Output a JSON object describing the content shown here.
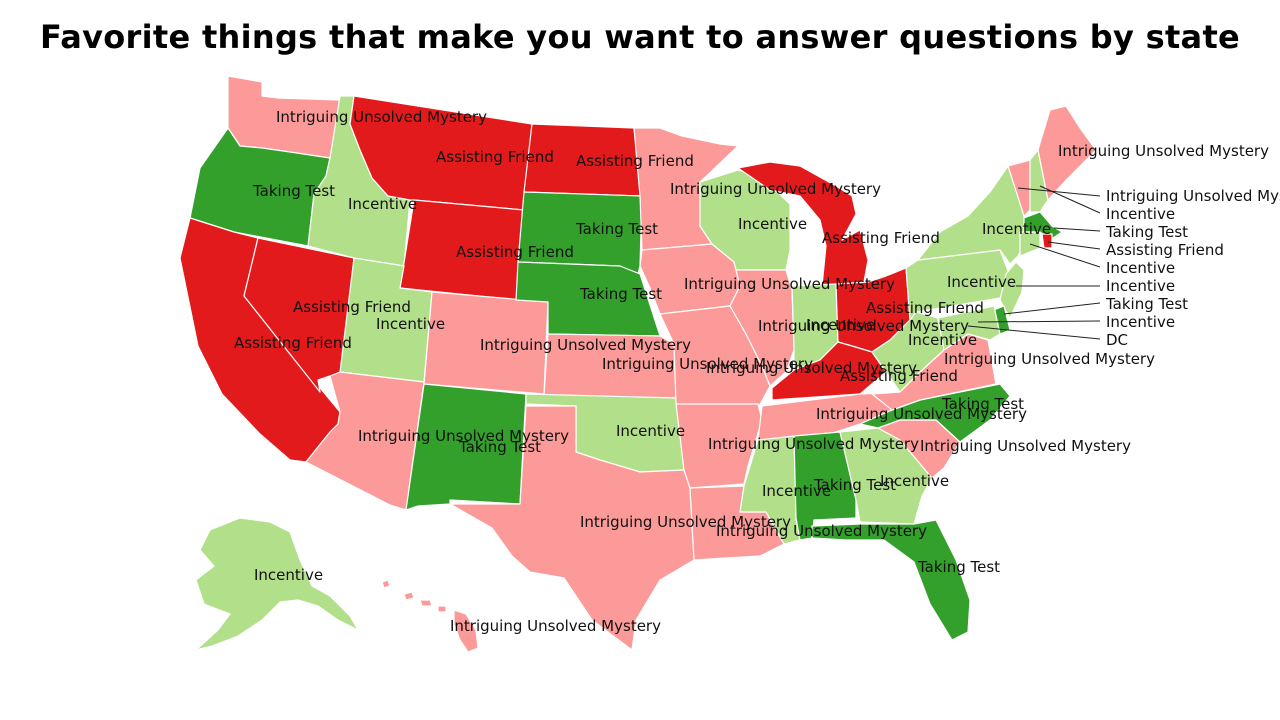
{
  "title": "Favorite things that make you want to answer questions by state",
  "legend_colors": {
    "Assisting Friend": "#e31a1c",
    "Intriguing Unsolved Mystery": "#fb9a99",
    "Taking Test": "#33a02c",
    "Incentive": "#b2df8a"
  },
  "states": {
    "WA": {
      "answer": "Intriguing Unsolved Mystery"
    },
    "OR": {
      "answer": "Taking Test"
    },
    "CA": {
      "answer": "Assisting Friend"
    },
    "ID": {
      "answer": "Incentive"
    },
    "NV": {
      "answer": "Assisting Friend"
    },
    "MT": {
      "answer": "Assisting Friend"
    },
    "WY": {
      "answer": "Assisting Friend"
    },
    "UT": {
      "answer": "Incentive"
    },
    "AZ": {
      "answer": "Intriguing Unsolved Mystery"
    },
    "CO": {
      "answer": "Intriguing Unsolved Mystery"
    },
    "NM": {
      "answer": "Taking Test"
    },
    "ND": {
      "answer": "Assisting Friend"
    },
    "SD": {
      "answer": "Taking Test"
    },
    "NE": {
      "answer": "Taking Test"
    },
    "KS": {
      "answer": "Intriguing Unsolved Mystery"
    },
    "OK": {
      "answer": "Incentive"
    },
    "TX": {
      "answer": "Intriguing Unsolved Mystery"
    },
    "MN": {
      "answer": "Intriguing Unsolved Mystery"
    },
    "IA": {
      "answer": "Intriguing Unsolved Mystery"
    },
    "MO": {
      "answer": "Intriguing Unsolved Mystery"
    },
    "AR": {
      "answer": "Intriguing Unsolved Mystery"
    },
    "LA": {
      "answer": "Intriguing Unsolved Mystery"
    },
    "WI": {
      "answer": "Incentive"
    },
    "IL": {
      "answer": "Intriguing Unsolved Mystery"
    },
    "MI": {
      "answer": "Assisting Friend"
    },
    "IN": {
      "answer": "Incentive"
    },
    "OH": {
      "answer": "Assisting Friend"
    },
    "KY": {
      "answer": "Assisting Friend"
    },
    "TN": {
      "answer": "Intriguing Unsolved Mystery"
    },
    "MS": {
      "answer": "Incentive"
    },
    "AL": {
      "answer": "Taking Test"
    },
    "GA": {
      "answer": "Incentive"
    },
    "FL": {
      "answer": "Taking Test"
    },
    "SC": {
      "answer": "Intriguing Unsolved Mystery"
    },
    "NC": {
      "answer": "Taking Test"
    },
    "VA": {
      "answer": "Intriguing Unsolved Mystery"
    },
    "WV": {
      "answer": "Incentive"
    },
    "PA": {
      "answer": "Incentive"
    },
    "NY": {
      "answer": "Incentive"
    },
    "ME": {
      "answer": "Intriguing Unsolved Mystery"
    },
    "VT": {
      "answer": "Intriguing Unsolved Mystery"
    },
    "NH": {
      "answer": "Incentive"
    },
    "MA": {
      "answer": "Taking Test"
    },
    "RI": {
      "answer": "Assisting Friend"
    },
    "CT": {
      "answer": "Incentive"
    },
    "NJ": {
      "answer": "Incentive"
    },
    "DE": {
      "answer": "Taking Test"
    },
    "MD": {
      "answer": "Incentive"
    },
    "DC": {
      "answer": "DC"
    },
    "AK": {
      "answer": "Incentive"
    },
    "HI": {
      "answer": "Intriguing Unsolved Mystery"
    }
  }
}
